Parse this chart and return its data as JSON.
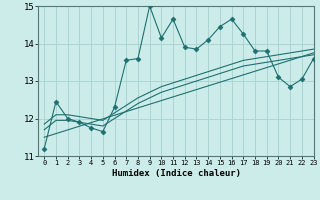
{
  "xlabel": "Humidex (Indice chaleur)",
  "ylabel": "",
  "xlim": [
    -0.5,
    23
  ],
  "ylim": [
    11,
    15
  ],
  "xticks": [
    0,
    1,
    2,
    3,
    4,
    5,
    6,
    7,
    8,
    9,
    10,
    11,
    12,
    13,
    14,
    15,
    16,
    17,
    18,
    19,
    20,
    21,
    22,
    23
  ],
  "yticks": [
    11,
    12,
    13,
    14,
    15
  ],
  "bg_color": "#ccecea",
  "line_color": "#1e7070",
  "grid_color": "#aad4d2",
  "line1_x": [
    0,
    1,
    2,
    3,
    4,
    5,
    6,
    7,
    8,
    9,
    10,
    11,
    12,
    13,
    14,
    15,
    16,
    17,
    18,
    19,
    20,
    21,
    22,
    23
  ],
  "line1_y": [
    11.2,
    12.45,
    12.0,
    11.9,
    11.75,
    11.65,
    12.3,
    13.55,
    13.6,
    15.0,
    14.15,
    14.65,
    13.9,
    13.85,
    14.1,
    14.45,
    14.65,
    14.25,
    13.8,
    13.8,
    13.1,
    12.85,
    13.05,
    13.6
  ],
  "line2_x": [
    0,
    1,
    2,
    3,
    4,
    5,
    6,
    7,
    8,
    9,
    10,
    11,
    12,
    13,
    14,
    15,
    16,
    17,
    18,
    19,
    20,
    21,
    22,
    23
  ],
  "line2_y": [
    11.85,
    12.1,
    12.1,
    12.05,
    12.0,
    11.95,
    12.15,
    12.35,
    12.55,
    12.7,
    12.85,
    12.95,
    13.05,
    13.15,
    13.25,
    13.35,
    13.45,
    13.55,
    13.6,
    13.65,
    13.7,
    13.75,
    13.8,
    13.85
  ],
  "line3_x": [
    0,
    1,
    2,
    3,
    4,
    5,
    6,
    7,
    8,
    9,
    10,
    11,
    12,
    13,
    14,
    15,
    16,
    17,
    18,
    19,
    20,
    21,
    22,
    23
  ],
  "line3_y": [
    11.7,
    11.95,
    11.95,
    11.9,
    11.85,
    11.8,
    12.0,
    12.2,
    12.4,
    12.55,
    12.7,
    12.8,
    12.9,
    13.0,
    13.1,
    13.2,
    13.3,
    13.4,
    13.45,
    13.5,
    13.55,
    13.6,
    13.65,
    13.7
  ],
  "line4_x": [
    0,
    23
  ],
  "line4_y": [
    11.5,
    13.75
  ]
}
